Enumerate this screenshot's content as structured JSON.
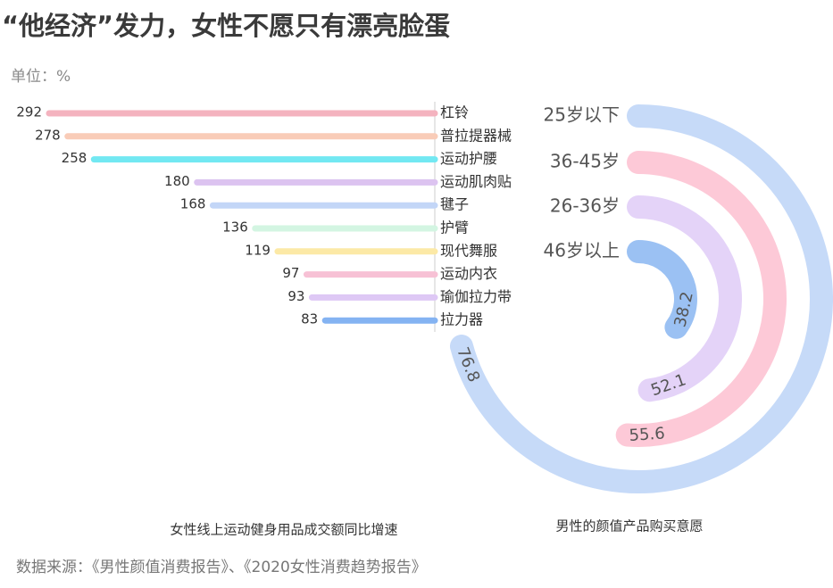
{
  "title": "“他经济”发力，女性不愿只有漂亮脸蛋",
  "unit": "单位：%",
  "source": "数据来源：《男性颜值消费报告》、《2020女性消费趋势报告》",
  "chart_data": [
    {
      "type": "bar",
      "orientation": "horizontal",
      "caption": "女性线上运动健身用品成交额同比增速",
      "categories": [
        "杠铃",
        "普拉提器械",
        "运动护腰",
        "运动肌肉贴",
        "毽子",
        "护臂",
        "现代舞服",
        "运动内衣",
        "瑜伽拉力带",
        "拉力器"
      ],
      "values": [
        292,
        278,
        258,
        180,
        168,
        136,
        119,
        97,
        93,
        83
      ],
      "colors": [
        "#f4b3bf",
        "#f9ccb8",
        "#72e8f2",
        "#dcc3f0",
        "#c3d6f7",
        "#d3f5e2",
        "#fce9a6",
        "#f7c1d5",
        "#dec8f5",
        "#84b3f2"
      ]
    },
    {
      "type": "radial_bar",
      "caption": "男性的颜值产品购买意愿",
      "categories": [
        "25岁以下",
        "36-45岁",
        "26-36岁",
        "46岁以上"
      ],
      "values": [
        76.8,
        55.6,
        52.1,
        38.2
      ],
      "colors": [
        "#c6daf8",
        "#fdc9d7",
        "#e4d3f8",
        "#9bc1f3"
      ]
    }
  ]
}
